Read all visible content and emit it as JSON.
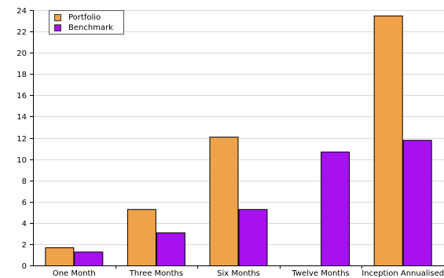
{
  "chart_data": {
    "type": "bar",
    "categories": [
      "One Month",
      "Three Months",
      "Six Months",
      "Twelve Months",
      "Inception Annualised"
    ],
    "series": [
      {
        "name": "Portfolio",
        "values": [
          1.7,
          5.3,
          12.1,
          0,
          23.5
        ],
        "color": "#eea24a"
      },
      {
        "name": "Benchmark",
        "values": [
          1.3,
          3.1,
          5.3,
          10.7,
          11.8
        ],
        "color": "#a711f0"
      }
    ],
    "y_ticks": [
      0,
      2,
      4,
      6,
      8,
      10,
      12,
      14,
      16,
      18,
      20,
      22,
      24
    ],
    "ylim": [
      0,
      24
    ],
    "grid": true,
    "legend_position": "top-left"
  }
}
